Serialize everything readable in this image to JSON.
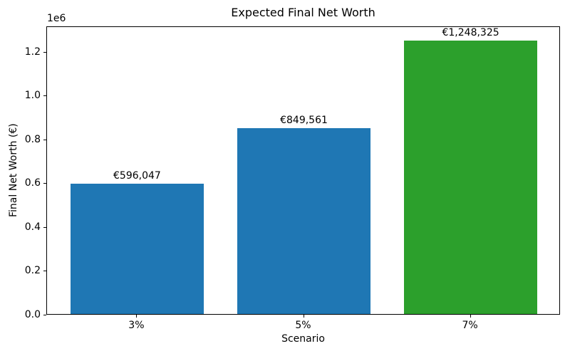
{
  "chart_data": {
    "type": "bar",
    "title": "Expected Final Net Worth",
    "xlabel": "Scenario",
    "ylabel": "Final Net Worth (€)",
    "offset_text": "1e6",
    "categories": [
      "3%",
      "5%",
      "7%"
    ],
    "values": [
      596047,
      849561,
      1248325
    ],
    "bar_labels": [
      "€596,047",
      "€849,561",
      "€1,248,325"
    ],
    "bar_colors": [
      "#1f77b4",
      "#1f77b4",
      "#2ca02c"
    ],
    "yticks": [
      0.0,
      0.2,
      0.4,
      0.6,
      0.8,
      1.0,
      1.2
    ],
    "ytick_labels": [
      "0.0",
      "0.2",
      "0.4",
      "0.6",
      "0.8",
      "1.0",
      "1.2"
    ],
    "y_multiplier": 1000000,
    "ylim": [
      0,
      1317000
    ],
    "grid": false,
    "legend": null
  }
}
